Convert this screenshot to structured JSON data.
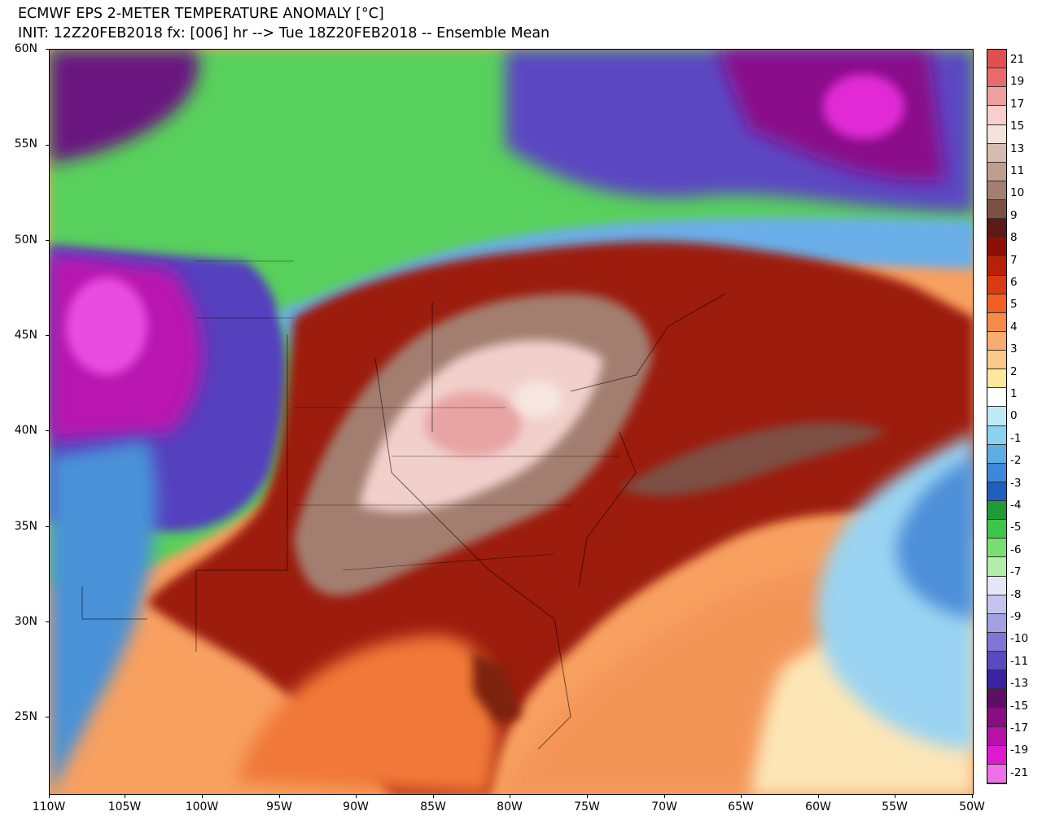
{
  "title": {
    "line1": "ECMWF EPS 2-METER TEMPERATURE ANOMALY [°C]",
    "line2": "INIT: 12Z20FEB2018 fx: [006] hr --> Tue 18Z20FEB2018 -- Ensemble Mean"
  },
  "map": {
    "lat_labels": [
      "60N",
      "55N",
      "50N",
      "45N",
      "40N",
      "35N",
      "30N",
      "25N"
    ],
    "lon_labels": [
      "110W",
      "105W",
      "100W",
      "95W",
      "90W",
      "85W",
      "80W",
      "75W",
      "70W",
      "65W",
      "60W",
      "55W",
      "50W"
    ],
    "region": "Eastern North America and Western Atlantic"
  },
  "colorbar": {
    "labels": [
      "21",
      "19",
      "17",
      "15",
      "13",
      "11",
      "10",
      "9",
      "8",
      "7",
      "6",
      "5",
      "4",
      "3",
      "2",
      "1",
      "0",
      "-1",
      "-2",
      "-3",
      "-4",
      "-5",
      "-6",
      "-7",
      "-8",
      "-9",
      "-10",
      "-11",
      "-13",
      "-15",
      "-17",
      "-19",
      "-21"
    ],
    "colors": [
      "#e05050",
      "#e86a6a",
      "#f0a0a0",
      "#f8cece",
      "#f3e3dc",
      "#d6bcb0",
      "#bf9d8f",
      "#a47e70",
      "#7d5044",
      "#5e1a14",
      "#8c1008",
      "#b82008",
      "#d83c10",
      "#f06020",
      "#f78a48",
      "#f9ab70",
      "#fbc988",
      "#fde79c",
      "#ffffff",
      "#bfe9f6",
      "#8ad2f0",
      "#5eaee6",
      "#3d88d8",
      "#1f5fbe",
      "#1f9b38",
      "#3cc64a",
      "#79de72",
      "#b2eeaa",
      "#e5e6f6",
      "#c5c4ef",
      "#a3a0e4",
      "#7f77d5",
      "#5a4ac0",
      "#3a22a2",
      "#5e0e66",
      "#8a0d82",
      "#b611a8",
      "#dd1ad0",
      "#f06ee8"
    ]
  }
}
